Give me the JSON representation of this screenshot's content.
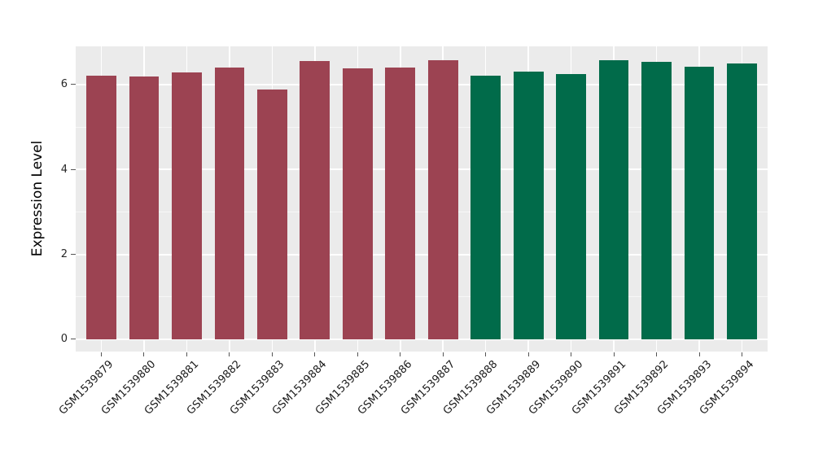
{
  "chart_data": {
    "type": "bar",
    "title": "",
    "xlabel": "",
    "ylabel": "Expression Level",
    "categories": [
      "GSM1539879",
      "GSM1539880",
      "GSM1539881",
      "GSM1539882",
      "GSM1539883",
      "GSM1539884",
      "GSM1539885",
      "GSM1539886",
      "GSM1539887",
      "GSM1539888",
      "GSM1539889",
      "GSM1539890",
      "GSM1539891",
      "GSM1539892",
      "GSM1539893",
      "GSM1539894"
    ],
    "values": [
      6.21,
      6.19,
      6.29,
      6.4,
      5.89,
      6.55,
      6.38,
      6.41,
      6.58,
      6.21,
      6.31,
      6.24,
      6.57,
      6.53,
      6.42,
      6.49
    ],
    "groups": [
      "A",
      "A",
      "A",
      "A",
      "A",
      "A",
      "A",
      "A",
      "A",
      "B",
      "B",
      "B",
      "B",
      "B",
      "B",
      "B"
    ],
    "group_colors": {
      "A": "#9C4352",
      "B": "#016B4A"
    },
    "ylim": [
      -0.29,
      6.9
    ],
    "yticks": [
      "0",
      "2",
      "4",
      "6"
    ],
    "ytick_values": [
      0,
      2,
      4,
      6
    ],
    "minor_ytick_values": [
      1,
      3,
      5
    ],
    "bar_width_fraction": 0.7,
    "grid": "on",
    "legend": "none",
    "panel_bg": "#EBEBEB",
    "grid_major_color": "#FFFFFF",
    "grid_minor_color": "#F7F7F7",
    "tick_color": "#555555"
  }
}
